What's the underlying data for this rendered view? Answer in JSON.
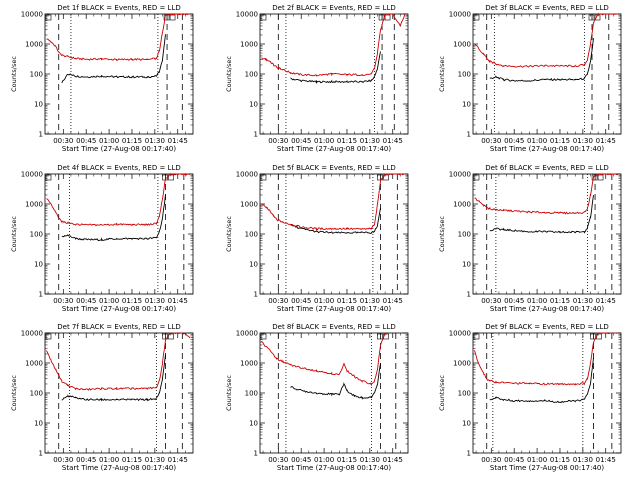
{
  "figure": {
    "xlabel": "Start Time (27-Aug-08 00:17:40)",
    "ylabel": "Counts/sec",
    "x_ticks": [
      "00:30",
      "00:45",
      "01:00",
      "01:15",
      "01:30",
      "01:45"
    ],
    "y_ticks": [
      "1",
      "10",
      "100",
      "1000",
      "10000"
    ],
    "colors": {
      "events": "#000000",
      "lld": "#cc0000",
      "axes": "#000000"
    }
  },
  "chart_data": [
    {
      "type": "line",
      "title": "Det 1f BLACK = Events, RED = LLD",
      "xlabel": "Start Time (27-Aug-08 00:17:40)",
      "ylabel": "Counts/sec",
      "x": [
        "00:19",
        "00:22",
        "00:25",
        "00:27",
        "00:29",
        "00:33",
        "00:38",
        "00:45",
        "00:55",
        "01:05",
        "01:15",
        "01:25",
        "01:31",
        "01:33",
        "01:35",
        "01:37",
        "01:40",
        "01:45",
        "01:50",
        "01:53"
      ],
      "series": [
        {
          "name": "BLACK = Events",
          "color": "#000000",
          "values": [
            null,
            null,
            null,
            null,
            50,
            100,
            85,
            80,
            85,
            80,
            80,
            80,
            85,
            120,
            300,
            2000,
            null,
            null,
            null,
            null
          ]
        },
        {
          "name": "RED = LLD",
          "color": "#cc0000",
          "values": [
            1500,
            1200,
            800,
            550,
            420,
            380,
            330,
            310,
            320,
            300,
            310,
            300,
            330,
            600,
            2500,
            9000,
            10000,
            10000,
            10000,
            10000
          ]
        }
      ],
      "ylim": [
        1,
        10000
      ],
      "y_scale": "log",
      "vlines": [
        {
          "x": "00:27",
          "style": "dashed"
        },
        {
          "x": "00:35",
          "style": "dotted"
        },
        {
          "x": "01:32",
          "style": "dotted"
        },
        {
          "x": "01:38",
          "style": "dashed"
        },
        {
          "x": "01:48",
          "style": "dashed"
        }
      ]
    },
    {
      "type": "line",
      "title": "Det 2f BLACK = Events, RED = LLD",
      "xlabel": "Start Time (27-Aug-08 00:17:40)",
      "ylabel": "Counts/sec",
      "x": [
        "00:19",
        "00:22",
        "00:25",
        "00:27",
        "00:29",
        "00:33",
        "00:38",
        "00:45",
        "00:55",
        "01:05",
        "01:15",
        "01:25",
        "01:31",
        "01:33",
        "01:35",
        "01:37",
        "01:40",
        "01:45",
        "01:50",
        "01:53"
      ],
      "series": [
        {
          "name": "BLACK = Events",
          "color": "#000000",
          "values": [
            null,
            null,
            null,
            null,
            null,
            null,
            70,
            60,
            55,
            55,
            55,
            55,
            60,
            80,
            150,
            600,
            null,
            null,
            null,
            null
          ]
        },
        {
          "name": "RED = LLD",
          "color": "#cc0000",
          "values": [
            350,
            300,
            250,
            200,
            170,
            140,
            110,
            95,
            90,
            100,
            95,
            95,
            100,
            150,
            500,
            3000,
            10000,
            10000,
            4000,
            10000
          ]
        }
      ],
      "ylim": [
        1,
        10000
      ],
      "y_scale": "log",
      "vlines": [
        {
          "x": "00:30",
          "style": "dashed"
        },
        {
          "x": "00:35",
          "style": "dotted"
        },
        {
          "x": "01:33",
          "style": "dotted"
        },
        {
          "x": "01:38",
          "style": "dashed"
        },
        {
          "x": "01:46",
          "style": "dashed"
        }
      ]
    },
    {
      "type": "line",
      "title": "Det 3f BLACK = Events, RED = LLD",
      "xlabel": "Start Time (27-Aug-08 00:17:40)",
      "ylabel": "Counts/sec",
      "x": [
        "00:19",
        "00:22",
        "00:25",
        "00:27",
        "00:29",
        "00:33",
        "00:38",
        "00:45",
        "00:55",
        "01:05",
        "01:15",
        "01:25",
        "01:31",
        "01:33",
        "01:35",
        "01:37",
        "01:40",
        "01:45",
        "01:50",
        "01:53"
      ],
      "series": [
        {
          "name": "BLACK = Events",
          "color": "#000000",
          "values": [
            null,
            null,
            null,
            null,
            70,
            80,
            65,
            60,
            60,
            65,
            65,
            65,
            70,
            100,
            250,
            1500,
            null,
            null,
            null,
            null
          ]
        },
        {
          "name": "RED = LLD",
          "color": "#cc0000",
          "values": [
            1000,
            700,
            450,
            330,
            260,
            220,
            190,
            180,
            180,
            190,
            185,
            185,
            200,
            300,
            1000,
            5000,
            10000,
            10000,
            10000,
            10000
          ]
        }
      ],
      "ylim": [
        1,
        10000
      ],
      "y_scale": "log",
      "vlines": [
        {
          "x": "00:27",
          "style": "dashed"
        },
        {
          "x": "00:32",
          "style": "dotted"
        },
        {
          "x": "01:31",
          "style": "dotted"
        },
        {
          "x": "01:36",
          "style": "dashed"
        },
        {
          "x": "01:47",
          "style": "dashed"
        }
      ]
    },
    {
      "type": "line",
      "title": "Det 4f BLACK = Events, RED = LLD",
      "xlabel": "Start Time (27-Aug-08 00:17:40)",
      "ylabel": "Counts/sec",
      "x": [
        "00:19",
        "00:22",
        "00:25",
        "00:27",
        "00:29",
        "00:33",
        "00:38",
        "00:45",
        "00:55",
        "01:05",
        "01:15",
        "01:25",
        "01:31",
        "01:33",
        "01:35",
        "01:37",
        "01:40",
        "01:45",
        "01:50",
        "01:53"
      ],
      "series": [
        {
          "name": "BLACK = Events",
          "color": "#000000",
          "values": [
            null,
            null,
            null,
            null,
            80,
            90,
            70,
            65,
            65,
            70,
            70,
            70,
            75,
            120,
            350,
            2000,
            null,
            null,
            null,
            null
          ]
        },
        {
          "name": "RED = LLD",
          "color": "#cc0000",
          "values": [
            1500,
            1000,
            550,
            350,
            260,
            230,
            210,
            200,
            200,
            210,
            205,
            205,
            220,
            400,
            1500,
            7000,
            10000,
            10000,
            10000,
            10000
          ]
        }
      ],
      "ylim": [
        1,
        10000
      ],
      "y_scale": "log",
      "vlines": [
        {
          "x": "00:27",
          "style": "dashed"
        },
        {
          "x": "00:34",
          "style": "dotted"
        },
        {
          "x": "01:32",
          "style": "dotted"
        },
        {
          "x": "01:37",
          "style": "dashed"
        },
        {
          "x": "01:49",
          "style": "dashed"
        }
      ]
    },
    {
      "type": "line",
      "title": "Det 5f BLACK = Events, RED = LLD",
      "xlabel": "Start Time (27-Aug-08 00:17:40)",
      "ylabel": "Counts/sec",
      "x": [
        "00:19",
        "00:22",
        "00:25",
        "00:27",
        "00:29",
        "00:33",
        "00:38",
        "00:45",
        "00:55",
        "01:05",
        "01:15",
        "01:25",
        "01:31",
        "01:33",
        "01:35",
        "01:37",
        "01:40",
        "01:45",
        "01:50",
        "01:53"
      ],
      "series": [
        {
          "name": "BLACK = Events",
          "color": "#000000",
          "values": [
            null,
            null,
            null,
            null,
            null,
            null,
            200,
            150,
            120,
            110,
            110,
            110,
            110,
            120,
            200,
            800,
            null,
            null,
            null,
            null
          ]
        },
        {
          "name": "RED = LLD",
          "color": "#cc0000",
          "values": [
            1000,
            800,
            550,
            400,
            300,
            250,
            210,
            170,
            150,
            150,
            150,
            145,
            150,
            200,
            1000,
            6000,
            10000,
            10000,
            10000,
            10000
          ]
        }
      ],
      "ylim": [
        1,
        10000
      ],
      "y_scale": "log",
      "vlines": [
        {
          "x": "00:30",
          "style": "dashed"
        },
        {
          "x": "00:35",
          "style": "dotted"
        },
        {
          "x": "01:32",
          "style": "dotted"
        },
        {
          "x": "01:37",
          "style": "dashed"
        },
        {
          "x": "01:48",
          "style": "dashed"
        }
      ]
    },
    {
      "type": "line",
      "title": "Det 6f BLACK = Events, RED = LLD",
      "xlabel": "Start Time (27-Aug-08 00:17:40)",
      "ylabel": "Counts/sec",
      "x": [
        "00:19",
        "00:22",
        "00:25",
        "00:27",
        "00:29",
        "00:33",
        "00:38",
        "00:45",
        "00:55",
        "01:05",
        "01:15",
        "01:25",
        "01:31",
        "01:33",
        "01:35",
        "01:37",
        "01:40",
        "01:45",
        "01:50",
        "01:53"
      ],
      "series": [
        {
          "name": "BLACK = Events",
          "color": "#000000",
          "values": [
            null,
            null,
            null,
            null,
            130,
            150,
            140,
            130,
            120,
            120,
            115,
            115,
            120,
            160,
            350,
            2000,
            null,
            null,
            null,
            null
          ]
        },
        {
          "name": "RED = LLD",
          "color": "#cc0000",
          "values": [
            1600,
            1200,
            900,
            750,
            700,
            650,
            620,
            580,
            540,
            520,
            500,
            500,
            520,
            700,
            2000,
            8000,
            10000,
            10000,
            10000,
            10000
          ]
        }
      ],
      "ylim": [
        1,
        10000
      ],
      "y_scale": "log",
      "vlines": [
        {
          "x": "00:27",
          "style": "dashed"
        },
        {
          "x": "00:33",
          "style": "dotted"
        },
        {
          "x": "01:33",
          "style": "dotted"
        },
        {
          "x": "01:38",
          "style": "dashed"
        },
        {
          "x": "01:49",
          "style": "dashed"
        }
      ]
    },
    {
      "type": "line",
      "title": "Det 7f BLACK = Events, RED = LLD",
      "xlabel": "Start Time (27-Aug-08 00:17:40)",
      "ylabel": "Counts/sec",
      "x": [
        "00:19",
        "00:22",
        "00:25",
        "00:27",
        "00:29",
        "00:33",
        "00:38",
        "00:45",
        "00:55",
        "01:05",
        "01:15",
        "01:25",
        "01:31",
        "01:33",
        "01:35",
        "01:37",
        "01:40",
        "01:45",
        "01:50",
        "01:53"
      ],
      "series": [
        {
          "name": "BLACK = Events",
          "color": "#000000",
          "values": [
            null,
            null,
            null,
            null,
            60,
            80,
            70,
            60,
            60,
            60,
            60,
            60,
            65,
            100,
            300,
            1800,
            null,
            null,
            null,
            null
          ]
        },
        {
          "name": "RED = LLD",
          "color": "#cc0000",
          "values": [
            2500,
            1200,
            600,
            400,
            250,
            180,
            140,
            130,
            140,
            140,
            140,
            140,
            150,
            250,
            1000,
            6000,
            10000,
            10000,
            10000,
            7000
          ]
        }
      ],
      "ylim": [
        1,
        10000
      ],
      "y_scale": "log",
      "vlines": [
        {
          "x": "00:27",
          "style": "dashed"
        },
        {
          "x": "00:34",
          "style": "dotted"
        },
        {
          "x": "01:31",
          "style": "dotted"
        },
        {
          "x": "01:37",
          "style": "dashed"
        },
        {
          "x": "01:48",
          "style": "dashed"
        }
      ]
    },
    {
      "type": "line",
      "title": "Det 8f BLACK = Events, RED = LLD",
      "xlabel": "Start Time (27-Aug-08 00:17:40)",
      "ylabel": "Counts/sec",
      "x": [
        "00:19",
        "00:22",
        "00:25",
        "00:27",
        "00:29",
        "00:33",
        "00:38",
        "00:45",
        "00:55",
        "01:05",
        "01:10",
        "01:13",
        "01:15",
        "01:20",
        "01:25",
        "01:31",
        "01:33",
        "01:35",
        "01:37",
        "01:40"
      ],
      "series": [
        {
          "name": "BLACK = Events",
          "color": "#000000",
          "values": [
            null,
            null,
            null,
            null,
            null,
            null,
            160,
            120,
            100,
            90,
            90,
            200,
            120,
            80,
            70,
            70,
            100,
            200,
            1000,
            null
          ]
        },
        {
          "name": "RED = LLD",
          "color": "#cc0000",
          "values": [
            5000,
            3500,
            2500,
            1800,
            1400,
            1100,
            850,
            700,
            550,
            450,
            400,
            1000,
            550,
            350,
            250,
            200,
            250,
            600,
            4000,
            10000
          ]
        }
      ],
      "ylim": [
        1,
        10000
      ],
      "y_scale": "log",
      "vlines": [
        {
          "x": "00:30",
          "style": "dashed"
        },
        {
          "x": "00:35",
          "style": "dotted"
        },
        {
          "x": "01:31",
          "style": "dotted"
        },
        {
          "x": "01:37",
          "style": "dashed"
        },
        {
          "x": "01:47",
          "style": "dashed"
        }
      ]
    },
    {
      "type": "line",
      "title": "Det 9f BLACK = Events, RED = LLD",
      "xlabel": "Start Time (27-Aug-08 00:17:40)",
      "ylabel": "Counts/sec",
      "x": [
        "00:19",
        "00:22",
        "00:25",
        "00:27",
        "00:29",
        "00:33",
        "00:38",
        "00:45",
        "00:55",
        "01:05",
        "01:15",
        "01:25",
        "01:31",
        "01:33",
        "01:35",
        "01:37",
        "01:40",
        "01:45",
        "01:50",
        "01:53"
      ],
      "series": [
        {
          "name": "BLACK = Events",
          "color": "#000000",
          "values": [
            null,
            null,
            null,
            null,
            60,
            70,
            60,
            55,
            55,
            55,
            50,
            55,
            60,
            90,
            200,
            1500,
            null,
            null,
            null,
            null
          ]
        },
        {
          "name": "RED = LLD",
          "color": "#cc0000",
          "values": [
            2500,
            900,
            450,
            300,
            250,
            230,
            220,
            210,
            210,
            200,
            200,
            200,
            210,
            300,
            1000,
            5000,
            10000,
            10000,
            10000,
            10000
          ]
        }
      ],
      "ylim": [
        1,
        10000
      ],
      "y_scale": "log",
      "vlines": [
        {
          "x": "00:27",
          "style": "dashed"
        },
        {
          "x": "00:31",
          "style": "dotted"
        },
        {
          "x": "01:30",
          "style": "dotted"
        },
        {
          "x": "01:37",
          "style": "dashed"
        },
        {
          "x": "01:49",
          "style": "dashed"
        }
      ]
    }
  ]
}
